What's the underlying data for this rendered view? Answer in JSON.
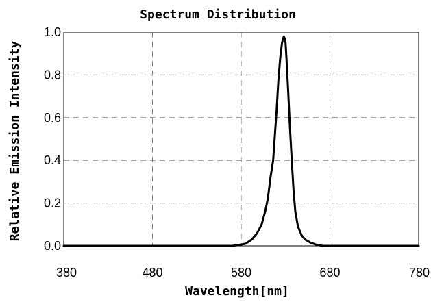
{
  "chart_data": {
    "type": "line",
    "title": "Spectrum Distribution",
    "xlabel": "Wavelength[nm]",
    "ylabel": "Relative Emission Intensity",
    "xlim": [
      380,
      780
    ],
    "ylim": [
      0.0,
      1.0
    ],
    "xticks": [
      380,
      480,
      580,
      680,
      780
    ],
    "yticks": [
      0.0,
      0.2,
      0.4,
      0.6,
      0.8,
      1.0
    ],
    "xtick_labels": [
      "380",
      "480",
      "580",
      "680",
      "780"
    ],
    "ytick_labels": [
      "0.0",
      "0.2",
      "0.4",
      "0.6",
      "0.8",
      "1.0"
    ],
    "grid": true,
    "series": [
      {
        "x": [
          380,
          570,
          578,
          585,
          592,
          598,
          603,
          607,
          610,
          613,
          616,
          618,
          620,
          622,
          624,
          626,
          628,
          629,
          630,
          631,
          633,
          635,
          637,
          639,
          641,
          644,
          648,
          652,
          658,
          665,
          672,
          680,
          780
        ],
        "y": [
          0.0,
          0.0,
          0.005,
          0.01,
          0.03,
          0.06,
          0.1,
          0.16,
          0.22,
          0.32,
          0.4,
          0.52,
          0.64,
          0.78,
          0.88,
          0.95,
          0.98,
          0.97,
          0.95,
          0.88,
          0.72,
          0.55,
          0.4,
          0.26,
          0.16,
          0.09,
          0.05,
          0.03,
          0.015,
          0.005,
          0.0,
          0.0,
          0.0
        ]
      }
    ]
  }
}
